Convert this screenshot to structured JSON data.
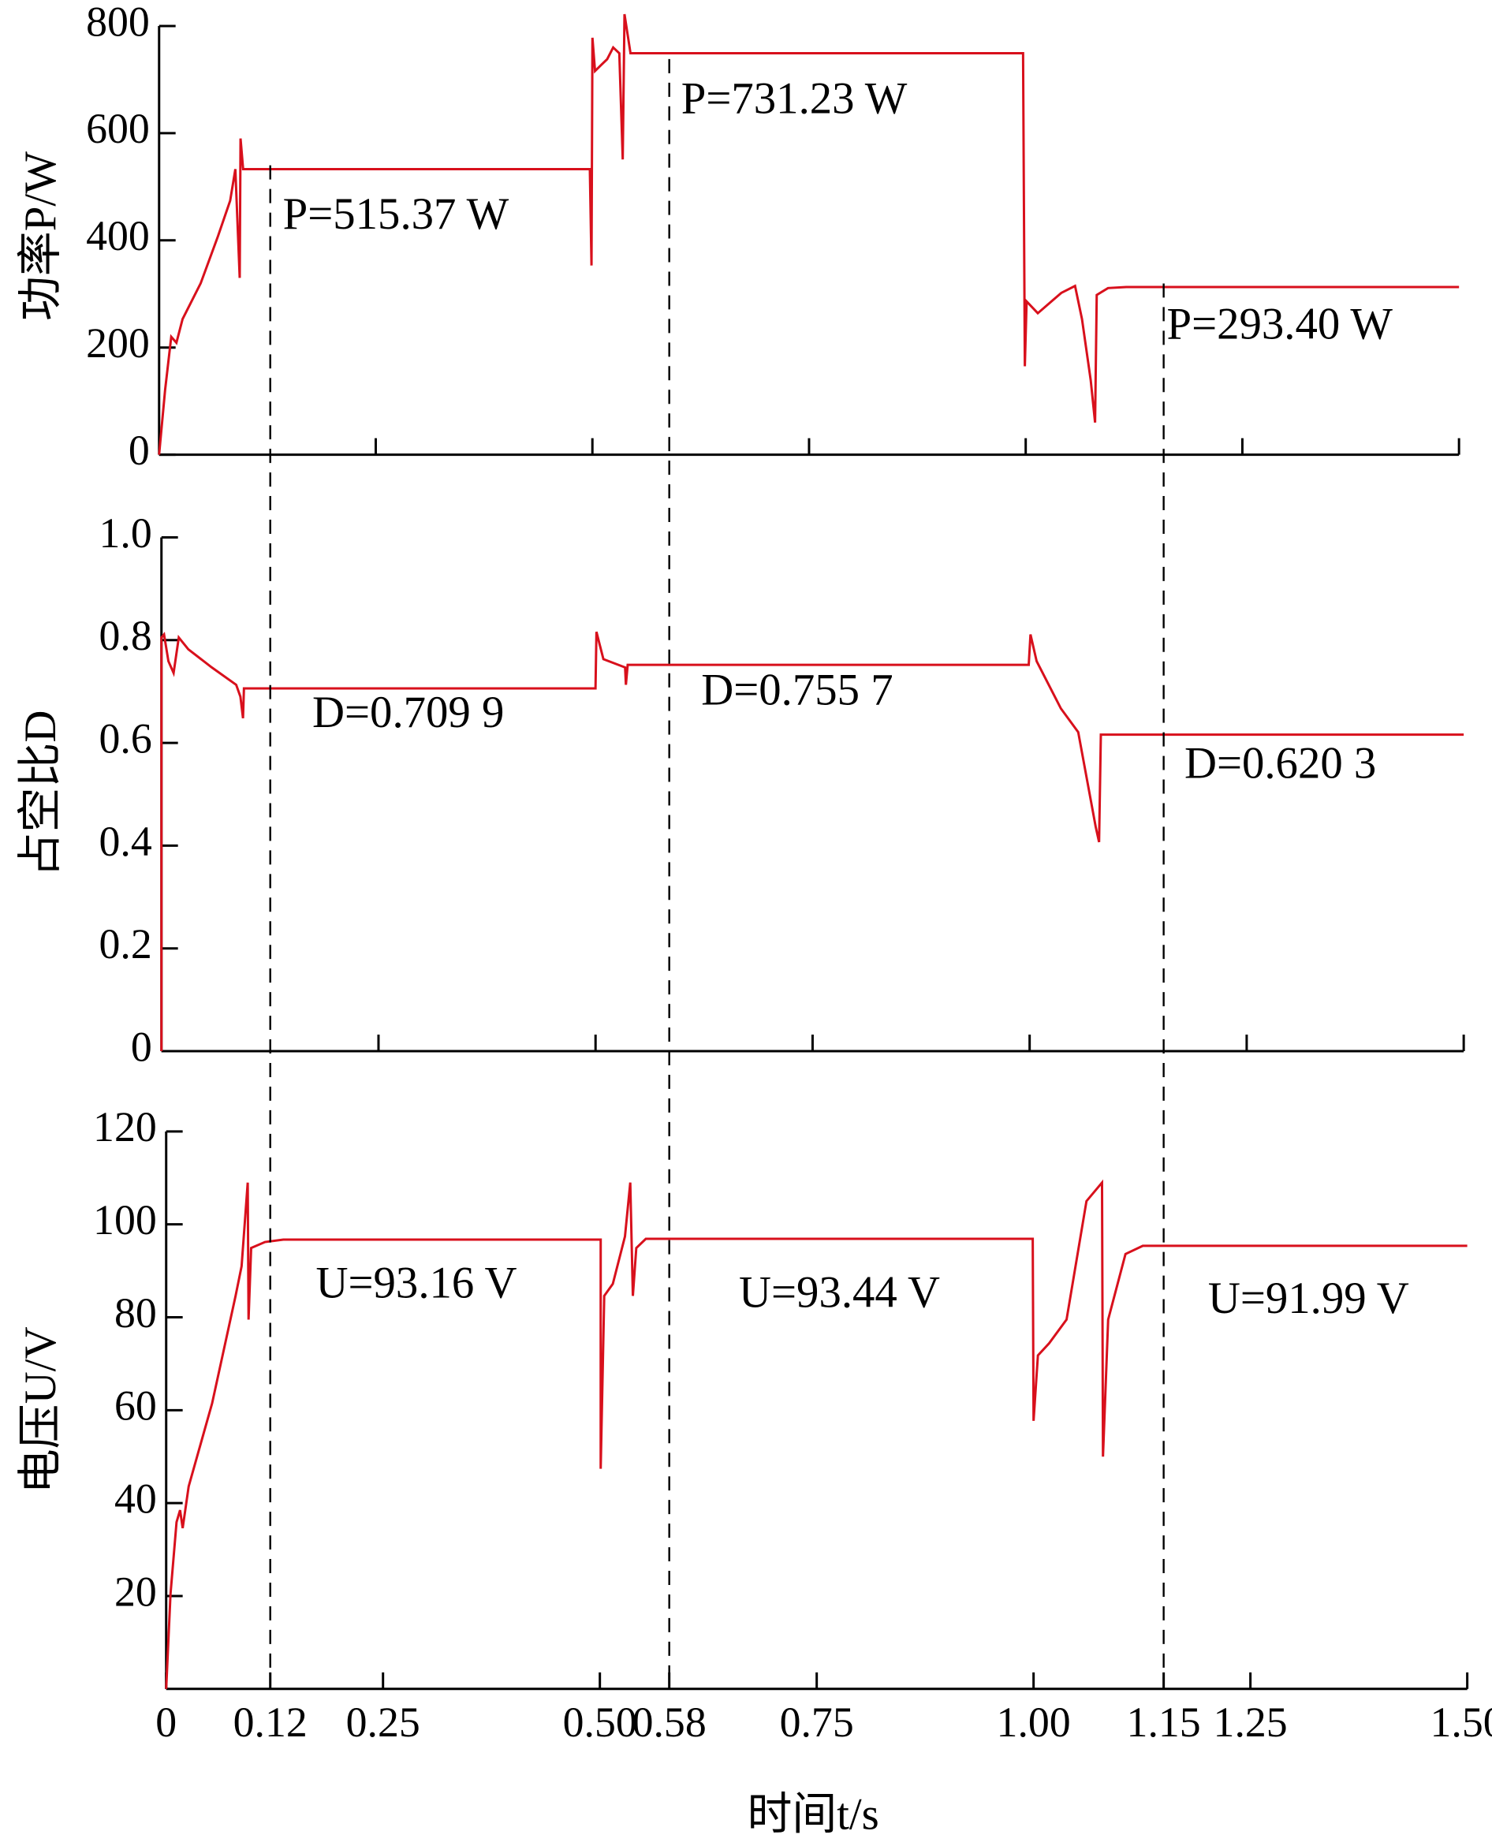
{
  "chart_data": [
    {
      "type": "line",
      "ylabel": "功率P/W",
      "color": "#d8101c",
      "x": [
        0,
        0.007,
        0.014,
        0.02,
        0.027,
        0.048,
        0.068,
        0.082,
        0.088,
        0.093,
        0.094,
        0.097,
        0.497,
        0.499,
        0.5,
        0.503,
        0.51,
        0.517,
        0.524,
        0.531,
        0.535,
        0.537,
        0.544,
        0.997,
        0.999,
        1.001,
        1.014,
        1.041,
        1.057,
        1.065,
        1.075,
        1.08,
        1.082,
        1.095,
        1.116,
        1.5
      ],
      "values": [
        0,
        121,
        220,
        209,
        253,
        320,
        408,
        474,
        533,
        330,
        590,
        533,
        533,
        353,
        778,
        716,
        727,
        738,
        760,
        749,
        551,
        822,
        749,
        749,
        165,
        286,
        264,
        302,
        315,
        253,
        139,
        60,
        298,
        311,
        313,
        313
      ],
      "xlim": [
        0,
        1.5
      ],
      "ylim": [
        0,
        800
      ],
      "xticks": [
        0.25,
        0.5,
        0.75,
        1,
        1.25,
        1.5
      ],
      "xticklabels": false,
      "yticks": [
        0,
        200,
        400,
        600,
        800
      ],
      "annotations": [
        "P=515.37 W",
        "P=731.23 W",
        "P=293.40 W"
      ]
    },
    {
      "type": "line",
      "ylabel": "占空比D",
      "color": "#d8101c",
      "x": [
        0,
        0,
        0.003,
        0.008,
        0.014,
        0.02,
        0.031,
        0.058,
        0.086,
        0.091,
        0.094,
        0.095,
        0.5,
        0.501,
        0.509,
        0.534,
        0.535,
        0.537,
        0.999,
        1.001,
        1.008,
        1.036,
        1.056,
        1.076,
        1.08,
        1.082,
        1.5
      ],
      "values": [
        0,
        0.805,
        0.811,
        0.759,
        0.736,
        0.805,
        0.782,
        0.747,
        0.713,
        0.69,
        0.648,
        0.706,
        0.706,
        0.816,
        0.763,
        0.747,
        0.713,
        0.752,
        0.752,
        0.811,
        0.759,
        0.667,
        0.621,
        0.437,
        0.407,
        0.616,
        0.616
      ],
      "xlim": [
        0,
        1.5
      ],
      "ylim": [
        0,
        1
      ],
      "xticks": [
        0.25,
        0.5,
        0.75,
        1,
        1.25,
        1.5
      ],
      "xticklabels": false,
      "yticks": [
        0,
        0.2,
        0.4,
        0.6,
        0.8,
        {
          "value": 1,
          "label": "1.0"
        }
      ],
      "annotations": [
        "D=0.709 9",
        "D=0.755 7",
        "D=0.620 3"
      ]
    },
    {
      "type": "line",
      "ylabel": "电压U/V",
      "xlabel": "时间t/s",
      "color": "#d8101c",
      "x": [
        0,
        0.005,
        0.012,
        0.016,
        0.019,
        0.026,
        0.053,
        0.08,
        0.087,
        0.094,
        0.095,
        0.098,
        0.114,
        0.135,
        0.501,
        0.501,
        0.505,
        0.515,
        0.529,
        0.535,
        0.538,
        0.542,
        0.553,
        0.999,
        1.0,
        1.005,
        1.018,
        1.038,
        1.061,
        1.079,
        1.08,
        1.086,
        1.106,
        1.126,
        1.5
      ],
      "values": [
        0,
        20.5,
        35.9,
        38.5,
        34.6,
        43.6,
        61.5,
        84.6,
        91,
        109,
        79.5,
        94.9,
        96.2,
        96.7,
        96.7,
        47.4,
        84.6,
        87.2,
        97.4,
        109,
        84.6,
        94.9,
        96.9,
        96.9,
        57.7,
        71.8,
        74.4,
        79.5,
        105,
        109,
        50,
        79.5,
        93.6,
        95.4,
        95.4
      ],
      "xlim": [
        0,
        1.5
      ],
      "ylim": [
        0,
        120
      ],
      "xticklabels": true,
      "xticks": [
        0,
        0.12,
        0.25,
        {
          "value": 0.5,
          "label": "0.50"
        },
        0.58,
        0.75,
        {
          "value": 1,
          "label": "1.00"
        },
        1.15,
        1.25,
        {
          "value": 1.5,
          "label": "1.50"
        }
      ],
      "yticks": [
        20,
        40,
        60,
        80,
        100,
        120
      ],
      "vlines": [
        0.12,
        0.58,
        1.15
      ],
      "annotations": [
        "U=93.16 V",
        "U=93.44 V",
        "U=91.99 V"
      ]
    }
  ]
}
